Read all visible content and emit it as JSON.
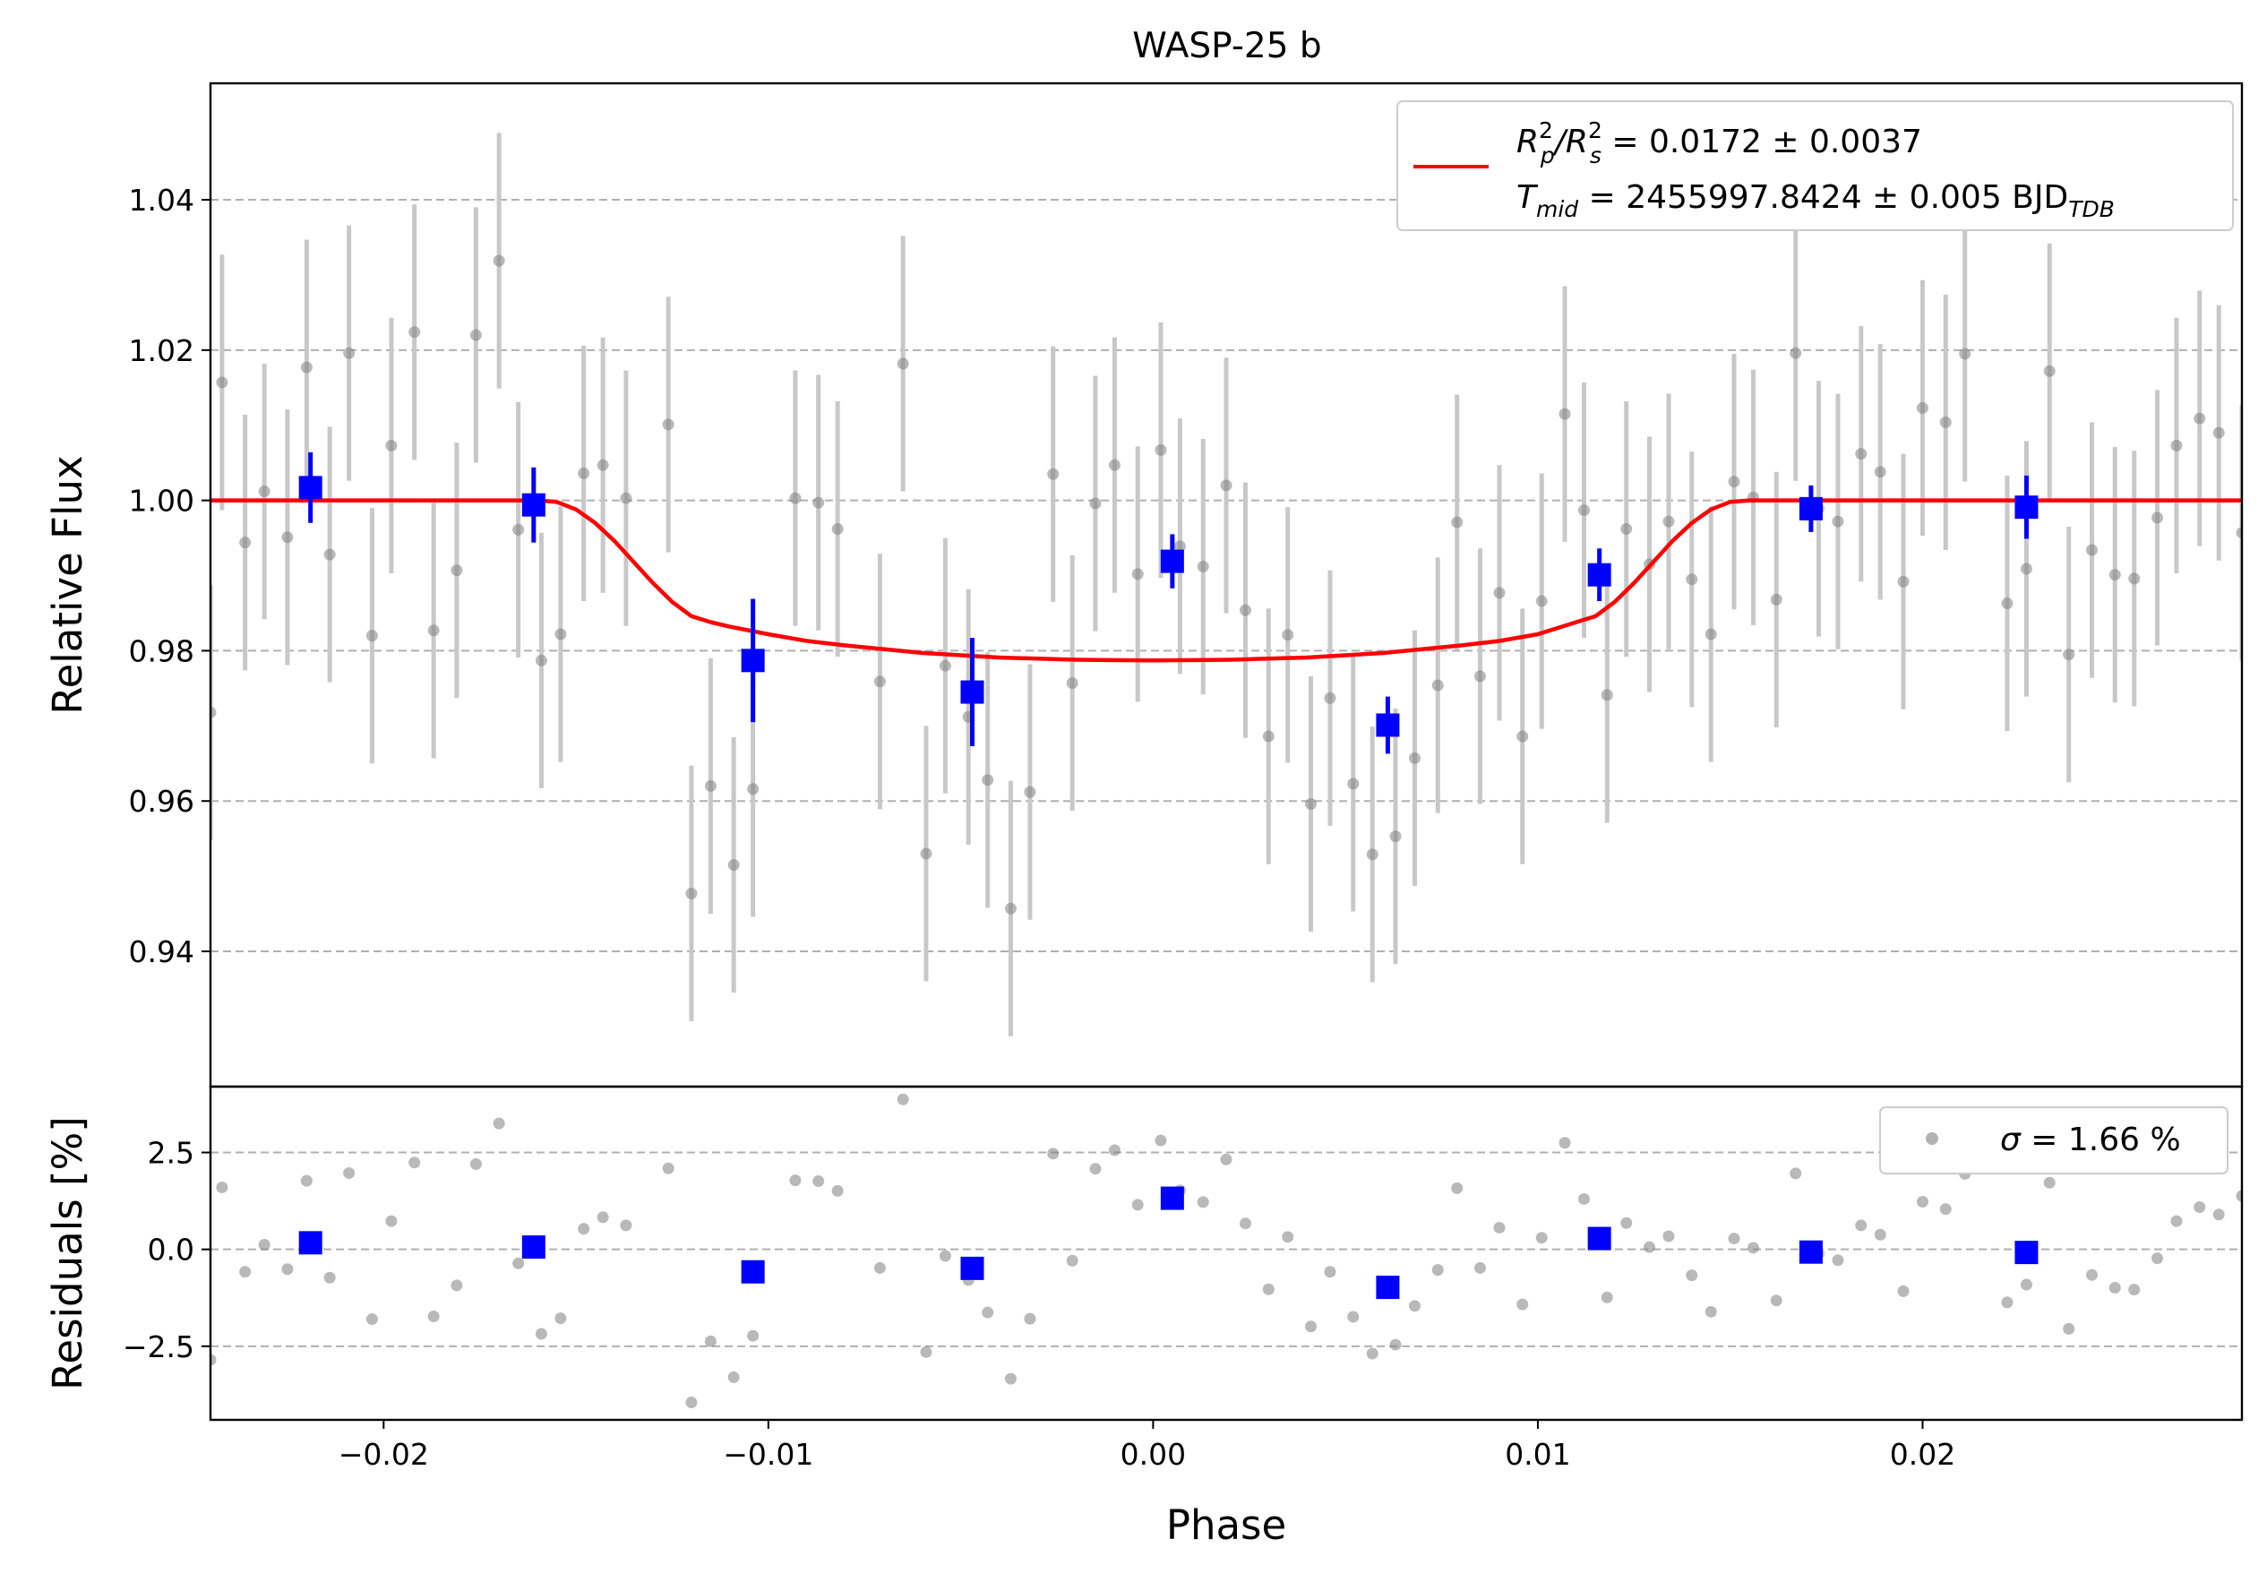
{
  "chart_data": [
    {
      "panel": "light-curve",
      "type": "scatter",
      "title": "WASP-25 b",
      "xlabel": "Phase",
      "ylabel": "Relative Flux",
      "xlim": [
        -0.0245,
        0.0283
      ],
      "ylim": [
        0.922,
        1.0555
      ],
      "xticks": [
        "−0.02",
        "−0.01",
        "0.00",
        "0.01",
        "0.02"
      ],
      "xtick_values": [
        -0.02,
        -0.01,
        0.0,
        0.01,
        0.02
      ],
      "yticks": [
        "0.94",
        "0.96",
        "0.98",
        "1.00",
        "1.02",
        "1.04"
      ],
      "ytick_values": [
        0.94,
        0.96,
        0.98,
        1.0,
        1.02,
        1.04
      ],
      "grid": "horizontal dashed",
      "legend": {
        "position": "top-right",
        "line1": {
          "r": "R",
          "rsub": "p",
          "rsup": "2",
          "slash": "/R",
          "ssub": "s",
          "ssup": "2",
          "rest": " = 0.0172 ± 0.0037"
        },
        "line2": {
          "t": "T",
          "tsub": "mid",
          "rest": " = 2455997.8424 ± 0.005 BJD",
          "bsub": "TDB"
        }
      },
      "colors": {
        "raw": "#808080",
        "errorbar": "#c8c8c8",
        "binned": "#0000ff",
        "model": "#ff0000"
      },
      "raw_points": [
        [
          -0.0245,
          0.9718,
          0.017
        ],
        [
          -0.0242,
          1.0157,
          0.017
        ],
        [
          -0.0236,
          0.9944,
          0.017
        ],
        [
          -0.0231,
          1.0012,
          0.017
        ],
        [
          -0.0225,
          0.9951,
          0.017
        ],
        [
          -0.022,
          1.0177,
          0.017
        ],
        [
          -0.0214,
          0.9928,
          0.017
        ],
        [
          -0.0209,
          1.0196,
          0.017
        ],
        [
          -0.0203,
          0.982,
          0.017
        ],
        [
          -0.0198,
          1.0073,
          0.017
        ],
        [
          -0.0192,
          1.0224,
          0.017
        ],
        [
          -0.0187,
          0.9827,
          0.017
        ],
        [
          -0.0181,
          0.9907,
          0.017
        ],
        [
          -0.0176,
          1.022,
          0.017
        ],
        [
          -0.017,
          1.0319,
          0.017
        ],
        [
          -0.0165,
          0.9961,
          0.017
        ],
        [
          -0.0159,
          0.9787,
          0.017
        ],
        [
          -0.0154,
          0.9822,
          0.017
        ],
        [
          -0.0148,
          1.0036,
          0.017
        ],
        [
          -0.0143,
          1.0047,
          0.017
        ],
        [
          -0.0137,
          1.0003,
          0.017
        ],
        [
          -0.0126,
          1.0101,
          0.017
        ],
        [
          -0.012,
          0.9477,
          0.017
        ],
        [
          -0.0115,
          0.962,
          0.017
        ],
        [
          -0.0109,
          0.9515,
          0.017
        ],
        [
          -0.0104,
          0.9616,
          0.017
        ],
        [
          -0.0093,
          1.0003,
          0.017
        ],
        [
          -0.0087,
          0.9997,
          0.017
        ],
        [
          -0.0082,
          0.9962,
          0.017
        ],
        [
          -0.0071,
          0.9759,
          0.017
        ],
        [
          -0.0065,
          1.0182,
          0.017
        ],
        [
          -0.0059,
          0.953,
          0.017
        ],
        [
          -0.0054,
          0.978,
          0.017
        ],
        [
          -0.0048,
          0.9712,
          0.017
        ],
        [
          -0.0043,
          0.9628,
          0.017
        ],
        [
          -0.0037,
          0.9457,
          0.017
        ],
        [
          -0.0032,
          0.9612,
          0.017
        ],
        [
          -0.0026,
          1.0035,
          0.017
        ],
        [
          -0.0021,
          0.9757,
          0.017
        ],
        [
          -0.0015,
          0.9996,
          0.017
        ],
        [
          -0.001,
          1.0047,
          0.017
        ],
        [
          -0.0004,
          0.9902,
          0.017
        ],
        [
          0.0002,
          1.0067,
          0.017
        ],
        [
          0.0007,
          0.9939,
          0.017
        ],
        [
          0.0013,
          0.9912,
          0.017
        ],
        [
          0.0019,
          1.002,
          0.017
        ],
        [
          0.0024,
          0.9854,
          0.017
        ],
        [
          0.003,
          0.9686,
          0.017
        ],
        [
          0.0035,
          0.9821,
          0.017
        ],
        [
          0.0041,
          0.9596,
          0.017
        ],
        [
          0.0046,
          0.9737,
          0.017
        ],
        [
          0.0052,
          0.9623,
          0.017
        ],
        [
          0.0057,
          0.9529,
          0.017
        ],
        [
          0.0063,
          0.9553,
          0.017
        ],
        [
          0.0068,
          0.9657,
          0.017
        ],
        [
          0.0074,
          0.9754,
          0.017
        ],
        [
          0.0079,
          0.9971,
          0.017
        ],
        [
          0.0085,
          0.9766,
          0.017
        ],
        [
          0.009,
          0.9877,
          0.017
        ],
        [
          0.0096,
          0.9686,
          0.017
        ],
        [
          0.0101,
          0.9866,
          0.017
        ],
        [
          0.0107,
          1.0115,
          0.017
        ],
        [
          0.0112,
          0.9987,
          0.017
        ],
        [
          0.0118,
          0.9741,
          0.017
        ],
        [
          0.0123,
          0.9962,
          0.017
        ],
        [
          0.0129,
          0.9915,
          0.017
        ],
        [
          0.0134,
          0.9972,
          0.017
        ],
        [
          0.014,
          0.9895,
          0.017
        ],
        [
          0.0145,
          0.9822,
          0.017
        ],
        [
          0.0151,
          1.0025,
          0.017
        ],
        [
          0.0156,
          1.0004,
          0.017
        ],
        [
          0.0162,
          0.9868,
          0.017
        ],
        [
          0.0167,
          1.0196,
          0.017
        ],
        [
          0.0173,
          0.9989,
          0.017
        ],
        [
          0.0178,
          0.9972,
          0.017
        ],
        [
          0.0184,
          1.0062,
          0.017
        ],
        [
          0.0189,
          1.0038,
          0.017
        ],
        [
          0.0195,
          0.9892,
          0.017
        ],
        [
          0.02,
          1.0123,
          0.017
        ],
        [
          0.0206,
          1.0104,
          0.017
        ],
        [
          0.0211,
          1.0195,
          0.017
        ],
        [
          0.0222,
          0.9863,
          0.017
        ],
        [
          0.0227,
          0.9909,
          0.017
        ],
        [
          0.0233,
          1.0172,
          0.017
        ],
        [
          0.0238,
          0.9795,
          0.017
        ],
        [
          0.0244,
          0.9934,
          0.017
        ],
        [
          0.025,
          0.9901,
          0.017
        ],
        [
          0.0255,
          0.9896,
          0.017
        ],
        [
          0.0261,
          0.9977,
          0.017
        ],
        [
          0.0266,
          1.0073,
          0.017
        ],
        [
          0.0272,
          1.0109,
          0.017
        ],
        [
          0.0277,
          1.009,
          0.017
        ],
        [
          0.0283,
          0.9957,
          0.017
        ]
      ],
      "binned_points": [
        [
          -0.0219,
          1.0017,
          0.0047
        ],
        [
          -0.0161,
          0.9994,
          0.005
        ],
        [
          -0.0104,
          0.9787,
          0.0082
        ],
        [
          -0.0047,
          0.9745,
          0.0072
        ],
        [
          0.0005,
          0.9919,
          0.0036
        ],
        [
          0.0061,
          0.9701,
          0.0038
        ],
        [
          0.0116,
          0.9901,
          0.0035
        ],
        [
          0.0171,
          0.9989,
          0.0031
        ],
        [
          0.0227,
          0.9991,
          0.0042
        ]
      ],
      "model": {
        "x": [
          -0.0245,
          -0.016,
          -0.0155,
          -0.015,
          -0.0145,
          -0.014,
          -0.0135,
          -0.013,
          -0.0125,
          -0.012,
          -0.0115,
          -0.011,
          -0.01,
          -0.009,
          -0.008,
          -0.006,
          -0.004,
          -0.002,
          0.0,
          0.002,
          0.004,
          0.006,
          0.008,
          0.009,
          0.01,
          0.011,
          0.0115,
          0.012,
          0.0125,
          0.013,
          0.0135,
          0.014,
          0.0145,
          0.015,
          0.0155,
          0.016,
          0.0283
        ],
        "y": [
          1.0,
          1.0,
          0.9998,
          0.9988,
          0.997,
          0.9946,
          0.9918,
          0.989,
          0.9865,
          0.9846,
          0.9838,
          0.9832,
          0.9822,
          0.9813,
          0.9807,
          0.9797,
          0.9791,
          0.9788,
          0.9787,
          0.9788,
          0.9791,
          0.9797,
          0.9807,
          0.9813,
          0.9822,
          0.9838,
          0.9846,
          0.9865,
          0.989,
          0.9918,
          0.9946,
          0.997,
          0.9988,
          0.9998,
          1.0,
          1.0,
          1.0
        ]
      }
    },
    {
      "panel": "residuals",
      "type": "scatter",
      "xlabel": "Phase",
      "ylabel": "Residuals [%]",
      "xlim": [
        -0.0245,
        0.0283
      ],
      "ylim": [
        -4.4,
        4.2
      ],
      "yticks": [
        "−2.5",
        "0.0",
        "2.5"
      ],
      "ytick_values": [
        -2.5,
        0.0,
        2.5
      ],
      "grid": "horizontal dashed",
      "legend": {
        "position": "top-right",
        "prefix": "σ",
        "text": " = 1.66 %"
      },
      "raw_points": [
        [
          -0.0245,
          -2.85
        ],
        [
          -0.0242,
          1.6
        ],
        [
          -0.0236,
          -0.58
        ],
        [
          -0.0231,
          0.12
        ],
        [
          -0.0225,
          -0.51
        ],
        [
          -0.022,
          1.77
        ],
        [
          -0.0214,
          -0.73
        ],
        [
          -0.0209,
          1.97
        ],
        [
          -0.0203,
          -1.8
        ],
        [
          -0.0198,
          0.73
        ],
        [
          -0.0192,
          2.24
        ],
        [
          -0.0187,
          -1.73
        ],
        [
          -0.0181,
          -0.93
        ],
        [
          -0.0176,
          2.2
        ],
        [
          -0.017,
          3.25
        ],
        [
          -0.0165,
          -0.36
        ],
        [
          -0.0159,
          -2.18
        ],
        [
          -0.0154,
          -1.78
        ],
        [
          -0.0148,
          0.53
        ],
        [
          -0.0143,
          0.83
        ],
        [
          -0.0137,
          0.62
        ],
        [
          -0.0126,
          2.09
        ],
        [
          -0.012,
          -3.95
        ],
        [
          -0.0115,
          -2.37
        ],
        [
          -0.0109,
          -3.3
        ],
        [
          -0.0104,
          -2.23
        ],
        [
          -0.0093,
          1.78
        ],
        [
          -0.0087,
          1.76
        ],
        [
          -0.0082,
          1.51
        ],
        [
          -0.0071,
          -0.48
        ],
        [
          -0.0065,
          3.87
        ],
        [
          -0.0059,
          -2.65
        ],
        [
          -0.0054,
          -0.17
        ],
        [
          -0.0048,
          -0.79
        ],
        [
          -0.0043,
          -1.63
        ],
        [
          -0.0037,
          -3.34
        ],
        [
          -0.0032,
          -1.79
        ],
        [
          -0.0026,
          2.47
        ],
        [
          -0.0021,
          -0.29
        ],
        [
          -0.0015,
          2.08
        ],
        [
          -0.001,
          2.56
        ],
        [
          -0.0004,
          1.15
        ],
        [
          0.0002,
          2.81
        ],
        [
          0.0007,
          1.52
        ],
        [
          0.0013,
          1.22
        ],
        [
          0.0019,
          2.32
        ],
        [
          0.0024,
          0.67
        ],
        [
          0.003,
          -1.03
        ],
        [
          0.0035,
          0.32
        ],
        [
          0.0041,
          -1.99
        ],
        [
          0.0046,
          -0.58
        ],
        [
          0.0052,
          -1.74
        ],
        [
          0.0057,
          -2.69
        ],
        [
          0.0063,
          -2.46
        ],
        [
          0.0068,
          -1.46
        ],
        [
          0.0074,
          -0.53
        ],
        [
          0.0079,
          1.58
        ],
        [
          0.0085,
          -0.48
        ],
        [
          0.009,
          0.56
        ],
        [
          0.0096,
          -1.42
        ],
        [
          0.0101,
          0.3
        ],
        [
          0.0107,
          2.75
        ],
        [
          0.0112,
          1.3
        ],
        [
          0.0118,
          -1.24
        ],
        [
          0.0123,
          0.68
        ],
        [
          0.0129,
          0.06
        ],
        [
          0.0134,
          0.34
        ],
        [
          0.014,
          -0.67
        ],
        [
          0.0145,
          -1.61
        ],
        [
          0.0151,
          0.28
        ],
        [
          0.0156,
          0.04
        ],
        [
          0.0162,
          -1.32
        ],
        [
          0.0167,
          1.96
        ],
        [
          0.0173,
          -0.11
        ],
        [
          0.0178,
          -0.28
        ],
        [
          0.0184,
          0.62
        ],
        [
          0.0189,
          0.38
        ],
        [
          0.0195,
          -1.08
        ],
        [
          0.02,
          1.23
        ],
        [
          0.0206,
          1.04
        ],
        [
          0.0211,
          1.95
        ],
        [
          0.0222,
          -1.37
        ],
        [
          0.0227,
          -0.91
        ],
        [
          0.0233,
          1.72
        ],
        [
          0.0238,
          -2.05
        ],
        [
          0.0244,
          -0.66
        ],
        [
          0.025,
          -0.99
        ],
        [
          0.0255,
          -1.04
        ],
        [
          0.0261,
          -0.23
        ],
        [
          0.0266,
          0.73
        ],
        [
          0.0272,
          1.09
        ],
        [
          0.0277,
          0.9
        ],
        [
          0.0283,
          1.38
        ]
      ],
      "binned_points": [
        [
          -0.0219,
          0.17
        ],
        [
          -0.0161,
          0.06
        ],
        [
          -0.0104,
          -0.58
        ],
        [
          -0.0047,
          -0.49
        ],
        [
          0.0005,
          1.32
        ],
        [
          0.0061,
          -0.98
        ],
        [
          0.0116,
          0.28
        ],
        [
          0.0171,
          -0.07
        ],
        [
          0.0227,
          -0.08
        ]
      ]
    }
  ]
}
